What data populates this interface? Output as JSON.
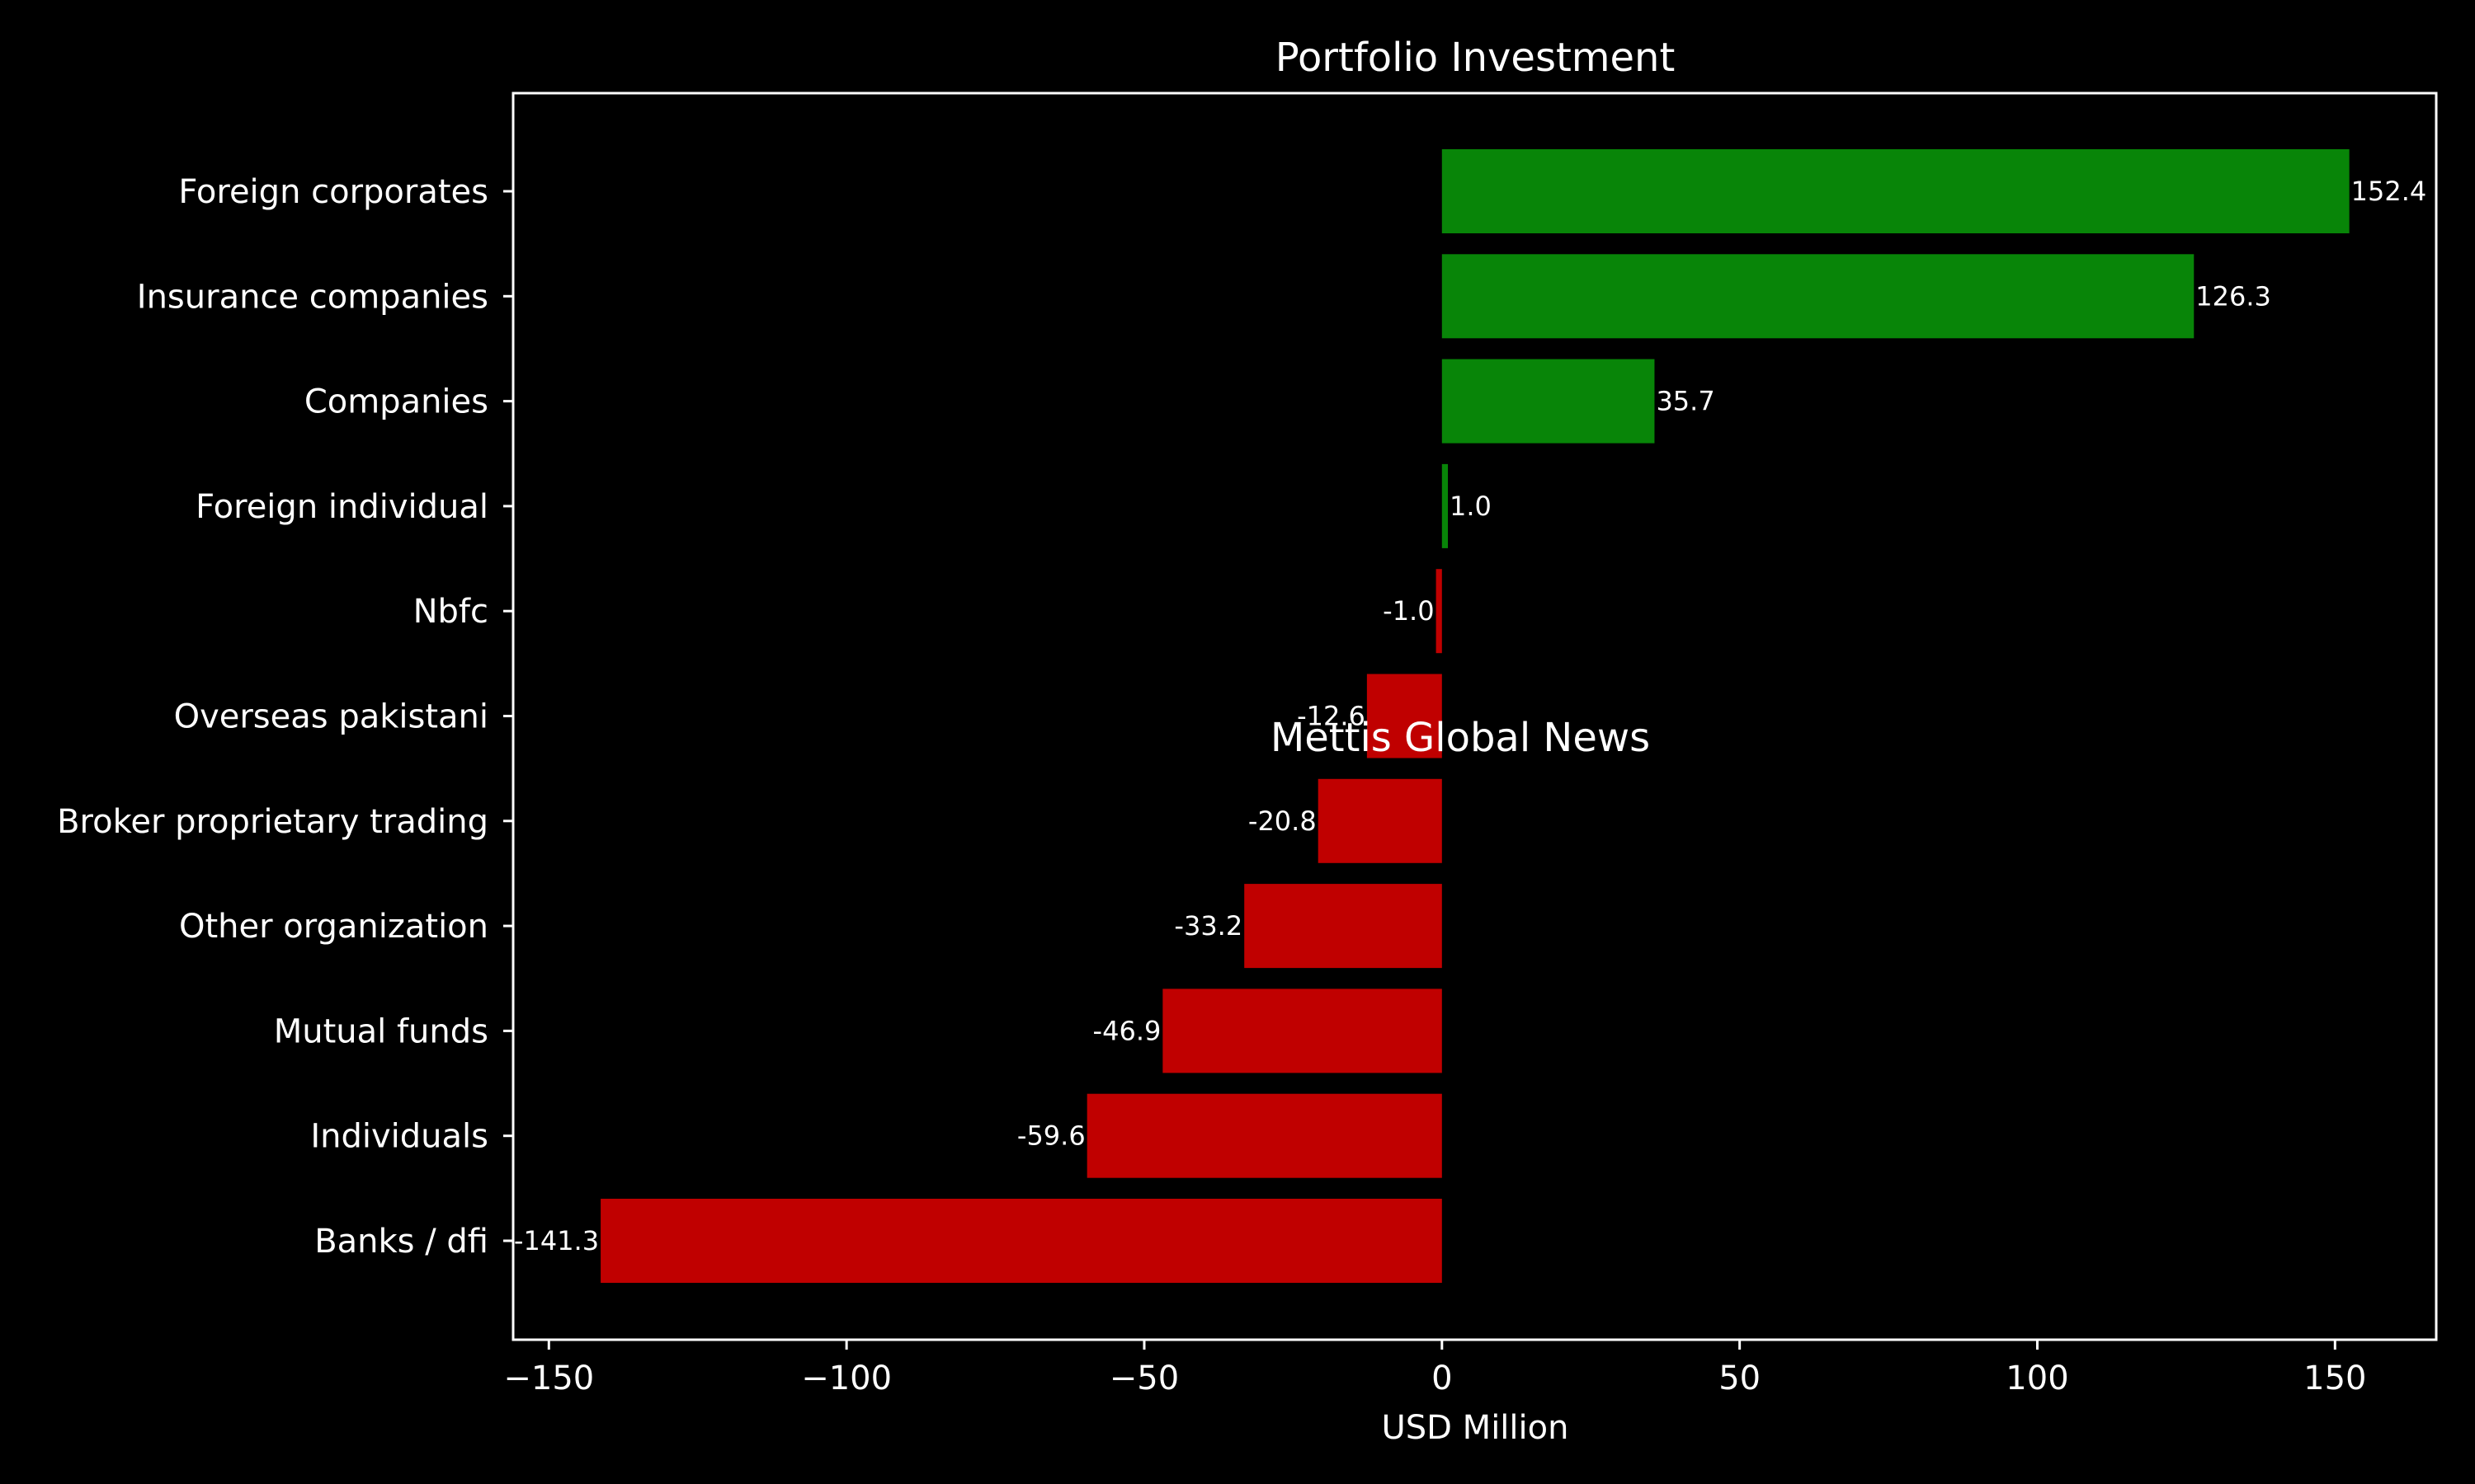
{
  "chart_data": {
    "type": "bar",
    "orientation": "horizontal",
    "title": "Portfolio Investment",
    "xlabel": "USD Million",
    "ylabel": "",
    "xlim": [
      -156,
      167
    ],
    "xticks": [
      -150,
      -100,
      -50,
      0,
      50,
      100,
      150
    ],
    "xtick_labels": [
      "−150",
      "−100",
      "−50",
      "0",
      "50",
      "100",
      "150"
    ],
    "grid": false,
    "categories": [
      "Foreign corporates ",
      "Insurance companies",
      "Companies",
      "Foreign individual",
      "Nbfc",
      "Overseas pakistani",
      "Broker proprietary trading",
      "Other organization",
      "Mutual funds",
      "Individuals",
      "Banks / dfi"
    ],
    "values": [
      152.4,
      126.3,
      35.7,
      1.0,
      -1.0,
      -12.6,
      -20.8,
      -33.2,
      -46.9,
      -59.6,
      -141.3
    ],
    "value_labels": [
      "152.4",
      "126.3",
      "35.7",
      "1.0",
      "-1.0",
      "-12.6",
      "-20.8",
      "-33.2",
      "-46.9",
      "-59.6",
      "-141.3"
    ],
    "colors": {
      "positive": "#088508",
      "negative": "#c00000",
      "background": "#000000",
      "axis": "#ffffff",
      "watermark": "#7a3e0e"
    },
    "watermark": "Mettis Global News"
  }
}
